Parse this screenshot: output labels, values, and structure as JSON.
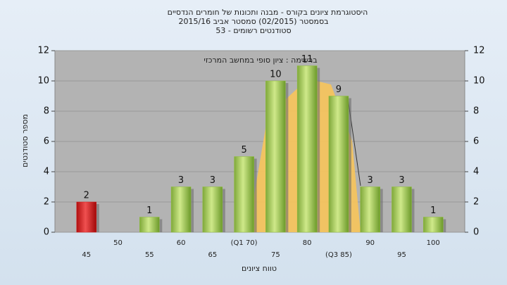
{
  "chart_data": {
    "type": "bar",
    "title": "היסטוגרמת ציונים בקורס - מבנה ותכונות של חומרים הנדסיים",
    "subtitle": "בסמסטר  (02/2015)  סמסטר אביב 2015/16",
    "subtitle2": "סטודנטים רשומים - 53",
    "annotation": "ברשימה : ציון סופי במחשב המרכזי",
    "y_label": "מספר סטודנטים",
    "x_label": "טווח ציונים",
    "categories": [
      "45",
      "50",
      "55",
      "60",
      "65",
      "(Q1 70)",
      "75",
      "80",
      "(Q3 85)",
      "90",
      "95",
      "100"
    ],
    "values": [
      2,
      0,
      1,
      3,
      3,
      5,
      10,
      11,
      9,
      3,
      3,
      1
    ],
    "colors": [
      "#d42020",
      "#8fbf3a",
      "#8fbf3a",
      "#8fbf3a",
      "#8fbf3a",
      "#8fbf3a",
      "#8fbf3a",
      "#8fbf3a",
      "#8fbf3a",
      "#8fbf3a",
      "#8fbf3a",
      "#8fbf3a"
    ],
    "ylim": [
      0,
      12
    ],
    "yticks": [
      0,
      2,
      4,
      6,
      8,
      10,
      12
    ],
    "y2lim": [
      0,
      12
    ],
    "y2ticks": [
      0,
      2,
      4,
      6,
      8,
      10,
      12
    ],
    "grid": true
  }
}
